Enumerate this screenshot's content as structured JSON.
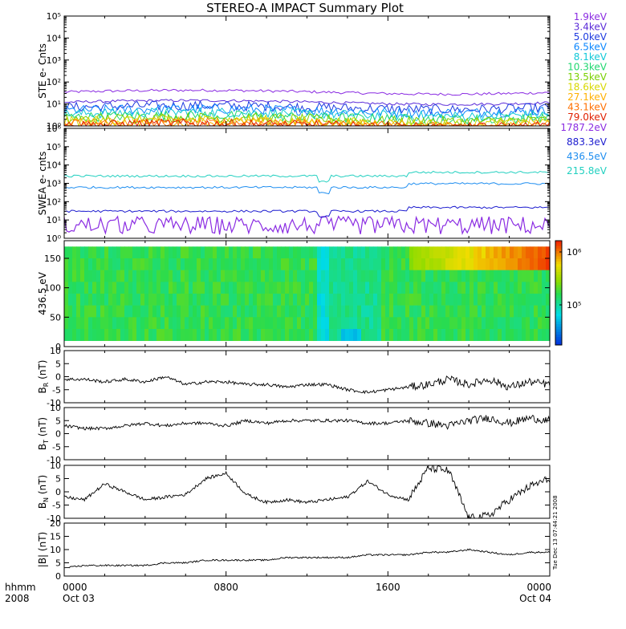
{
  "title": "STEREO-A IMPACT Summary Plot",
  "colors": {
    "ste": [
      "#8a2be2",
      "#5a2ad8",
      "#1e3ae0",
      "#0a86ff",
      "#10c8d8",
      "#20d870",
      "#7ad000",
      "#d8d800",
      "#ffb000",
      "#ff7000",
      "#e02000"
    ],
    "swea": [
      "#8a2be2",
      "#1c1ccf",
      "#1f8ef0",
      "#22d0c0"
    ],
    "line": "#000000",
    "axis": "#000000"
  },
  "chart_data": [
    {
      "type": "line",
      "name": "ste",
      "ylabel": "STE e- Cnts",
      "yscale": "log",
      "ylim": [
        1,
        100000
      ],
      "ytick_labels": [
        "10⁰",
        "10¹",
        "10²",
        "10³",
        "10⁴",
        "10⁵"
      ],
      "legend": [
        "1.9keV",
        "3.4keV",
        "5.0keV",
        "6.5keV",
        "8.1keV",
        "10.3keV",
        "13.5keV",
        "18.6keV",
        "27.1keV",
        "43.1keV",
        "79.0keV"
      ],
      "series_levels": [
        35,
        12,
        7,
        5,
        3.5,
        2.5,
        2,
        1.6,
        1.3,
        1.15,
        1.05
      ]
    },
    {
      "type": "line",
      "name": "swea",
      "ylabel": "SWEA e- cnts",
      "yscale": "log",
      "ylim": [
        1,
        1000000
      ],
      "ytick_labels": [
        "10⁰",
        "10¹",
        "10²",
        "10³",
        "10⁴",
        "10⁵",
        "10⁶"
      ],
      "legend": [
        "1787.2eV",
        "883.3eV",
        "436.5eV",
        "215.8eV"
      ],
      "series_levels": [
        5,
        30,
        600,
        2500
      ]
    },
    {
      "type": "heatmap",
      "name": "pad",
      "ylabel": "436.5 eV",
      "ylim": [
        0,
        180
      ],
      "ytick_labels": [
        "0",
        "50",
        "100",
        "150"
      ],
      "colorbar_labels": [
        "10⁶",
        "10⁵"
      ]
    },
    {
      "type": "line",
      "name": "br",
      "ylabel": "B_R (nT)",
      "ylim": [
        -10,
        10
      ],
      "ytick_labels": [
        "-10",
        "-5",
        "0",
        "5",
        "10"
      ],
      "x": [
        0,
        1,
        2,
        3,
        4,
        5,
        6,
        7,
        8,
        9,
        10,
        11,
        12,
        13,
        14,
        15,
        16,
        17,
        18,
        19,
        20,
        21,
        22,
        23,
        24
      ],
      "y": [
        -1,
        -1,
        -2,
        -1,
        -2,
        0,
        -3,
        -2,
        -2,
        -3,
        -3,
        -4,
        -3,
        -3,
        -5,
        -6,
        -5,
        -4,
        -3,
        -1,
        -3,
        -1,
        -4,
        -2,
        -3
      ]
    },
    {
      "type": "line",
      "name": "bt",
      "ylabel": "B_T (nT)",
      "ylim": [
        -10,
        10
      ],
      "ytick_labels": [
        "-10",
        "-5",
        "0",
        "5",
        "10"
      ],
      "x": [
        0,
        1,
        2,
        3,
        4,
        5,
        6,
        7,
        8,
        9,
        10,
        11,
        12,
        13,
        14,
        15,
        16,
        17,
        18,
        19,
        20,
        21,
        22,
        23,
        24
      ],
      "y": [
        3,
        2,
        2,
        3,
        4,
        3,
        4,
        4,
        3,
        5,
        4,
        5,
        5,
        5,
        5,
        4,
        4,
        5,
        4,
        3,
        5,
        6,
        4,
        6,
        5
      ]
    },
    {
      "type": "line",
      "name": "bn",
      "ylabel": "B_N (nT)",
      "ylim": [
        -10,
        10
      ],
      "ytick_labels": [
        "-10",
        "-5",
        "0",
        "5",
        "10"
      ],
      "x": [
        0,
        1,
        2,
        3,
        4,
        5,
        6,
        7,
        8,
        9,
        10,
        11,
        12,
        13,
        14,
        15,
        16,
        17,
        18,
        19,
        20,
        21,
        22,
        23,
        24
      ],
      "y": [
        -2,
        -3,
        3,
        0,
        -3,
        -2,
        -1,
        5,
        7,
        -1,
        -4,
        -3,
        -4,
        -3,
        -2,
        4,
        -1,
        -3,
        9,
        8,
        -10,
        -9,
        -3,
        2,
        5
      ]
    },
    {
      "type": "line",
      "name": "bmag",
      "ylabel": "|B| (nT)",
      "ylim": [
        0,
        20
      ],
      "ytick_labels": [
        "0",
        "5",
        "10",
        "15",
        "20"
      ],
      "x": [
        0,
        1,
        2,
        3,
        4,
        5,
        6,
        7,
        8,
        9,
        10,
        11,
        12,
        13,
        14,
        15,
        16,
        17,
        18,
        19,
        20,
        21,
        22,
        23,
        24
      ],
      "y": [
        3,
        4,
        4,
        4,
        4,
        5,
        5,
        6,
        6,
        6,
        6,
        7,
        7,
        7,
        7,
        8,
        8,
        8,
        9,
        9,
        10,
        9,
        8,
        9,
        9
      ]
    }
  ],
  "xaxis": {
    "label_left_1": "hhmm",
    "label_left_2": "2008",
    "ticks": [
      {
        "label1": "0000",
        "label2": "Oct 03",
        "hour": 0
      },
      {
        "label1": "0800",
        "label2": "",
        "hour": 8
      },
      {
        "label1": "1600",
        "label2": "",
        "hour": 16
      },
      {
        "label1": "0000",
        "label2": "Oct 04",
        "hour": 24
      }
    ]
  },
  "stamp": "Tue Dec 13 07:44:21 2008"
}
